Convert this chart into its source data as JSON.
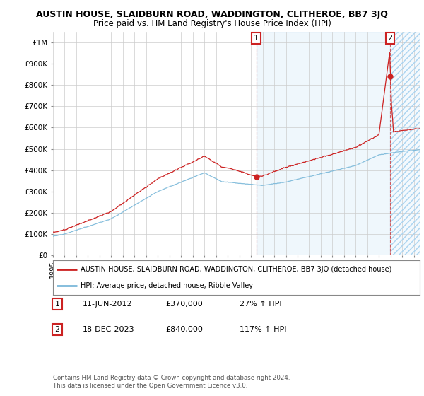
{
  "title": "AUSTIN HOUSE, SLAIDBURN ROAD, WADDINGTON, CLITHEROE, BB7 3JQ",
  "subtitle": "Price paid vs. HM Land Registry's House Price Index (HPI)",
  "ylim": [
    0,
    1050000
  ],
  "yticks": [
    0,
    100000,
    200000,
    300000,
    400000,
    500000,
    600000,
    700000,
    800000,
    900000,
    1000000
  ],
  "ytick_labels": [
    "£0",
    "£100K",
    "£200K",
    "£300K",
    "£400K",
    "£500K",
    "£600K",
    "£700K",
    "£800K",
    "£900K",
    "£1M"
  ],
  "x_start_year": 1995,
  "x_end_year": 2026,
  "hpi_color": "#7ab8d9",
  "price_color": "#cc2222",
  "shade_color": "#ddeeff",
  "background_color": "#ffffff",
  "grid_color": "#cccccc",
  "legend_label_red": "AUSTIN HOUSE, SLAIDBURN ROAD, WADDINGTON, CLITHEROE, BB7 3JQ (detached house)",
  "legend_label_blue": "HPI: Average price, detached house, Ribble Valley",
  "annotation1_label": "1",
  "annotation1_date": "11-JUN-2012",
  "annotation1_price": "£370,000",
  "annotation1_hpi": "27% ↑ HPI",
  "annotation1_year": 2012.45,
  "annotation1_value": 370000,
  "annotation2_label": "2",
  "annotation2_date": "18-DEC-2023",
  "annotation2_price": "£840,000",
  "annotation2_hpi": "117% ↑ HPI",
  "annotation2_year": 2023.96,
  "annotation2_value": 840000,
  "footer1": "Contains HM Land Registry data © Crown copyright and database right 2024.",
  "footer2": "This data is licensed under the Open Government Licence v3.0.",
  "title_fontsize": 9,
  "subtitle_fontsize": 8.5
}
